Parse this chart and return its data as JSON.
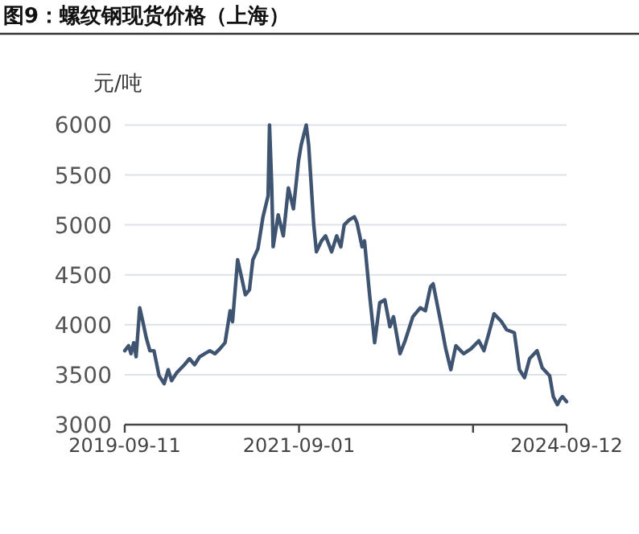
{
  "chart_data": {
    "type": "line",
    "title": "图9：螺纹钢现货价格（上海）",
    "ylabel": "元/吨",
    "x": [
      "2019-09-11",
      "2019-09-27",
      "2019-10-07",
      "2019-10-18",
      "2019-10-28",
      "2019-11-12",
      "2019-11-25",
      "2019-12-09",
      "2019-12-24",
      "2020-01-10",
      "2020-01-31",
      "2020-02-21",
      "2020-03-09",
      "2020-03-23",
      "2020-04-13",
      "2020-05-15",
      "2020-06-05",
      "2020-06-26",
      "2020-07-17",
      "2020-08-28",
      "2020-09-18",
      "2020-10-09",
      "2020-10-30",
      "2020-11-20",
      "2020-11-30",
      "2020-12-21",
      "2021-01-05",
      "2021-01-22",
      "2021-02-08",
      "2021-02-22",
      "2021-03-15",
      "2021-04-05",
      "2021-04-26",
      "2021-05-02",
      "2021-05-11",
      "2021-05-17",
      "2021-06-07",
      "2021-06-28",
      "2021-07-19",
      "2021-08-09",
      "2021-08-30",
      "2021-09-10",
      "2021-10-01",
      "2021-10-11",
      "2021-11-01",
      "2021-11-12",
      "2021-12-03",
      "2021-12-20",
      "2022-01-14",
      "2022-02-04",
      "2022-02-21",
      "2022-03-07",
      "2022-03-28",
      "2022-04-18",
      "2022-04-29",
      "2022-05-20",
      "2022-05-30",
      "2022-06-20",
      "2022-07-11",
      "2022-08-01",
      "2022-08-22",
      "2022-09-12",
      "2022-09-27",
      "2022-10-24",
      "2022-11-14",
      "2022-12-16",
      "2023-01-16",
      "2023-02-06",
      "2023-02-27",
      "2023-03-10",
      "2023-04-10",
      "2023-05-01",
      "2023-05-22",
      "2023-06-12",
      "2023-07-14",
      "2023-08-14",
      "2023-09-15",
      "2023-10-06",
      "2023-10-27",
      "2023-11-17",
      "2023-12-18",
      "2024-01-08",
      "2024-02-09",
      "2024-03-01",
      "2024-03-22",
      "2024-04-12",
      "2024-05-13",
      "2024-06-03",
      "2024-07-04",
      "2024-07-19",
      "2024-08-05",
      "2024-08-16",
      "2024-08-26",
      "2024-09-12"
    ],
    "series": [
      {
        "color": "#3e5470",
        "values": [
          3740,
          3790,
          3710,
          3820,
          3680,
          4170,
          4030,
          3870,
          3740,
          3740,
          3490,
          3410,
          3550,
          3440,
          3520,
          3600,
          3660,
          3600,
          3680,
          3740,
          3710,
          3760,
          3820,
          4140,
          4030,
          4650,
          4490,
          4300,
          4350,
          4650,
          4760,
          5080,
          5290,
          6000,
          5400,
          4780,
          5100,
          4890,
          5370,
          5160,
          5640,
          5800,
          6000,
          5800,
          5000,
          4730,
          4840,
          4890,
          4730,
          4890,
          4780,
          5000,
          5050,
          5080,
          5020,
          4780,
          4840,
          4300,
          3820,
          4220,
          4250,
          3980,
          4080,
          3710,
          3840,
          4080,
          4170,
          4140,
          4380,
          4410,
          4030,
          3760,
          3550,
          3790,
          3710,
          3760,
          3840,
          3740,
          3920,
          4110,
          4030,
          3950,
          3920,
          3550,
          3470,
          3660,
          3740,
          3570,
          3490,
          3280,
          3200,
          3250,
          3280,
          3230
        ]
      }
    ],
    "ylim": [
      3000,
      6000
    ],
    "yticks": [
      3000,
      3500,
      4000,
      4500,
      5000,
      5500,
      6000
    ],
    "xlim": [
      "2019-09-11",
      "2024-09-12"
    ],
    "xticks": [
      {
        "value": "2019-09-11",
        "label": "2019-09-11"
      },
      {
        "value": "2021-09-01",
        "label": "2021-09-01"
      },
      {
        "value": "2023-08-22",
        "label": null
      },
      {
        "value": "2024-09-12",
        "label": "2024-09-12"
      }
    ],
    "grid": "y",
    "marker": "none",
    "line_style": "solid"
  }
}
